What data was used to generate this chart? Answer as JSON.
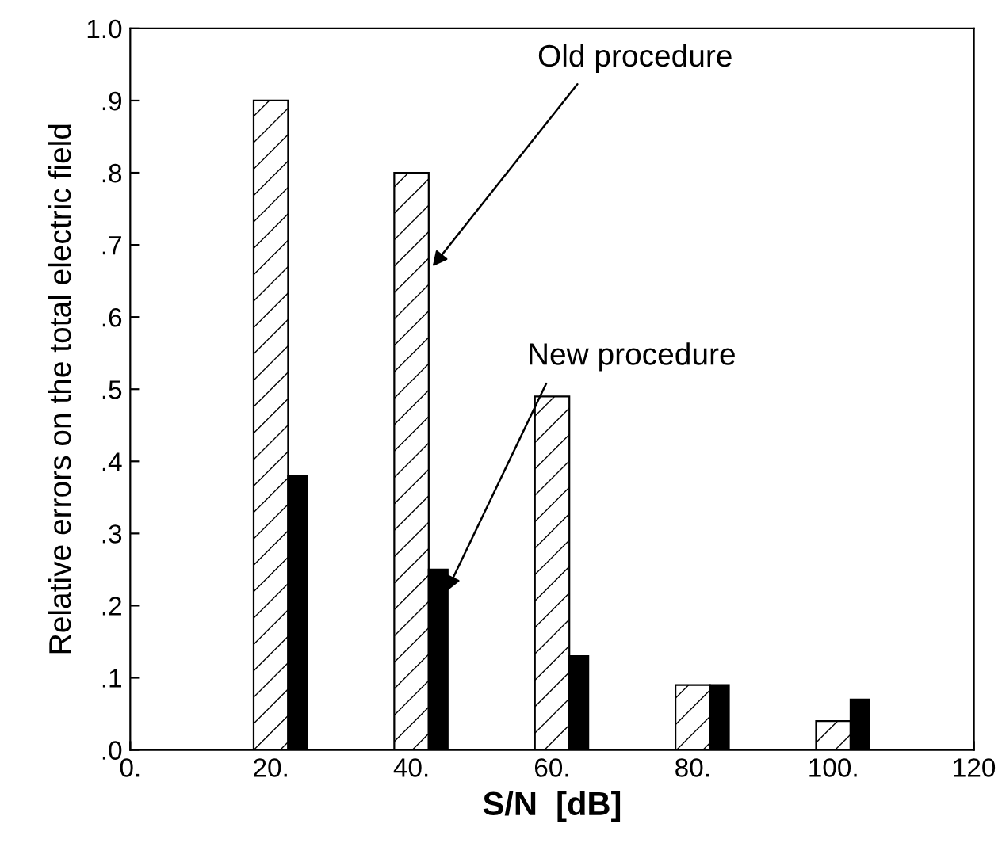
{
  "chart_data": {
    "type": "bar",
    "xlabel": "S/N  [dB]",
    "ylabel": "Relative errors on the total electric field",
    "series": [
      {
        "color": "#000000",
        "x": [
          20,
          40,
          60,
          80,
          100
        ],
        "values": [
          0.9,
          0.8,
          0.49,
          0.09,
          0.04
        ]
      },
      {
        "color": "#000000",
        "x": [
          23.8,
          43.8,
          63.8,
          83.8,
          103.8
        ],
        "values": [
          0.38,
          0.25,
          0.13,
          0.09,
          0.07
        ]
      }
    ],
    "xlim": [
      0,
      120
    ],
    "xticks": [
      {
        "value": 0,
        "label": "0."
      },
      {
        "value": 20,
        "label": "20."
      },
      {
        "value": 40,
        "label": "40."
      },
      {
        "value": 60,
        "label": "60."
      },
      {
        "value": 80,
        "label": "80."
      },
      {
        "value": 100,
        "label": "100."
      },
      120
    ],
    "ylim": [
      0,
      1.0
    ],
    "yticks": [
      {
        "value": 0,
        "label": ".0"
      },
      {
        "value": 0.1,
        "label": ".1"
      },
      {
        "value": 0.2,
        "label": ".2"
      },
      {
        "value": 0.3,
        "label": ".3"
      },
      {
        "value": 0.4,
        "label": ".4"
      },
      {
        "value": 0.5,
        "label": ".5"
      },
      {
        "value": 0.6,
        "label": ".6"
      },
      {
        "value": 0.7,
        "label": ".7"
      },
      {
        "value": 0.8,
        "label": ".8"
      },
      {
        "value": 0.9,
        "label": ".9"
      },
      {
        "value": 1.0,
        "label": "1.0"
      }
    ],
    "annotations": [
      {
        "text": "Old procedure",
        "x": 43,
        "y": 0.67
      },
      {
        "text": "New procedure",
        "x": 45,
        "y": 0.22
      }
    ],
    "grid": false,
    "legend": false
  }
}
